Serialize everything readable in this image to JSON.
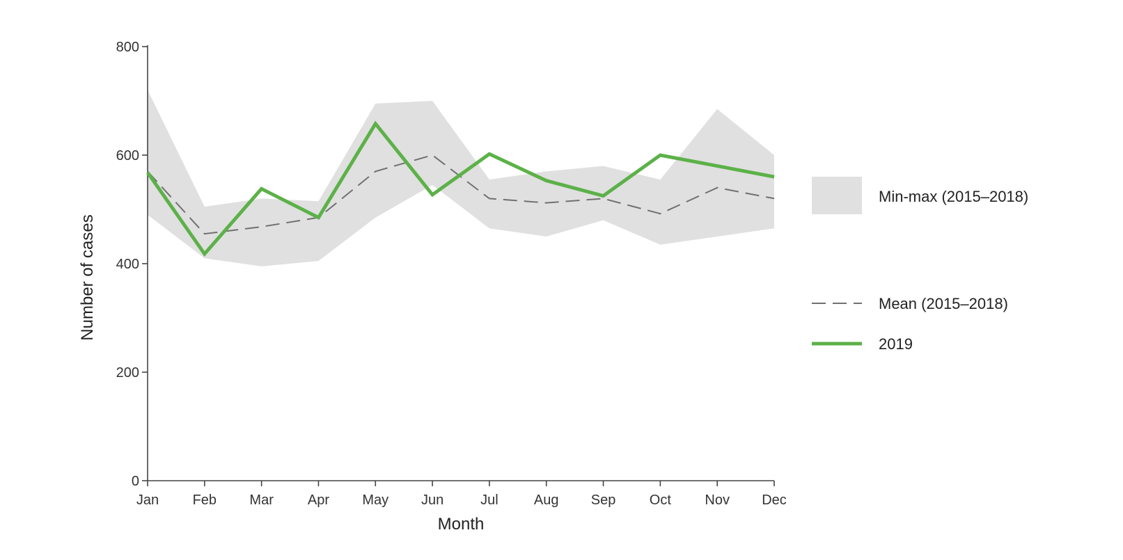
{
  "chart_data": {
    "type": "line",
    "title": "",
    "xlabel": "Month",
    "ylabel": "Number of cases",
    "categories": [
      "Jan",
      "Feb",
      "Mar",
      "Apr",
      "May",
      "Jun",
      "Jul",
      "Aug",
      "Sep",
      "Oct",
      "Nov",
      "Dec"
    ],
    "ylim": [
      0,
      800
    ],
    "yticks": [
      0,
      200,
      400,
      600,
      800
    ],
    "grid": false,
    "legend_position": "right",
    "band": {
      "name": "Min-max (2015–2018)",
      "min": [
        490,
        410,
        395,
        405,
        485,
        545,
        465,
        450,
        480,
        435,
        450,
        465
      ],
      "max": [
        720,
        505,
        520,
        515,
        695,
        700,
        555,
        570,
        580,
        555,
        685,
        600
      ],
      "color": "#e0e0e0"
    },
    "series": [
      {
        "name": "Mean (2015–2018)",
        "values": [
          570,
          455,
          468,
          485,
          570,
          600,
          520,
          512,
          520,
          492,
          540,
          520
        ],
        "style": "dashed",
        "color": "#707070"
      },
      {
        "name": "2019",
        "values": [
          568,
          418,
          538,
          485,
          658,
          527,
          602,
          553,
          525,
          600,
          580,
          560
        ],
        "style": "solid",
        "color": "#5cb148"
      }
    ]
  }
}
